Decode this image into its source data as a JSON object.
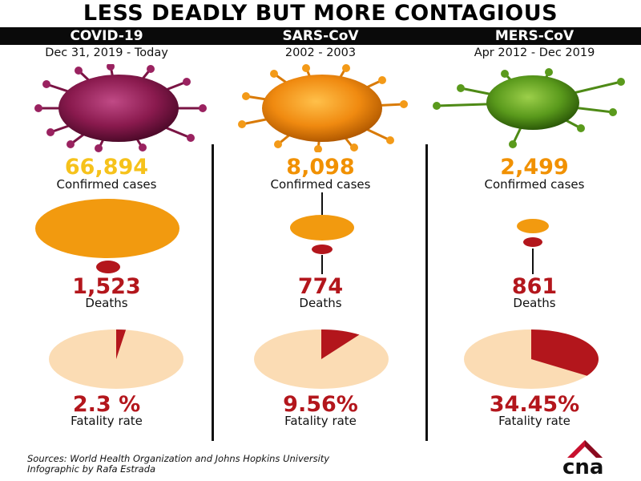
{
  "title": "LESS DEADLY BUT MORE CONTAGIOUS",
  "colors": {
    "header_bg": "#0a0a0a",
    "cases_covid": "#f6c21b",
    "cases_other": "#f19100",
    "deaths_red": "#b3161c",
    "pie_base": "#fbdcb4",
    "pie_slice": "#b3161c"
  },
  "columns": [
    {
      "name": "COVID-19",
      "dates": "Dec 31, 2019 - Today",
      "virus_color": "magenta-virus",
      "cases": "66,894",
      "cases_label": "Confirmed cases",
      "deaths": "1,523",
      "deaths_label": "Deaths",
      "fatality": "2.3 %",
      "fatality_label": "Fatality rate",
      "fatality_value": 2.3
    },
    {
      "name": "SARS-CoV",
      "dates": "2002 - 2003",
      "virus_color": "orange-virus",
      "cases": "8,098",
      "cases_label": "Confirmed cases",
      "deaths": "774",
      "deaths_label": "Deaths",
      "fatality": "9.56%",
      "fatality_label": "Fatality rate",
      "fatality_value": 9.56
    },
    {
      "name": "MERS-CoV",
      "dates": "Apr 2012 - Dec 2019",
      "virus_color": "green-virus",
      "cases": "2,499",
      "cases_label": "Confirmed cases",
      "deaths": "861",
      "deaths_label": "Deaths",
      "fatality": "34.45%",
      "fatality_label": "Fatality rate",
      "fatality_value": 34.45
    }
  ],
  "sources": "Sources: World Health Organization and Johns Hopkins University",
  "credit": "Infographic by Rafa Estrada",
  "logo_text": "cna"
}
